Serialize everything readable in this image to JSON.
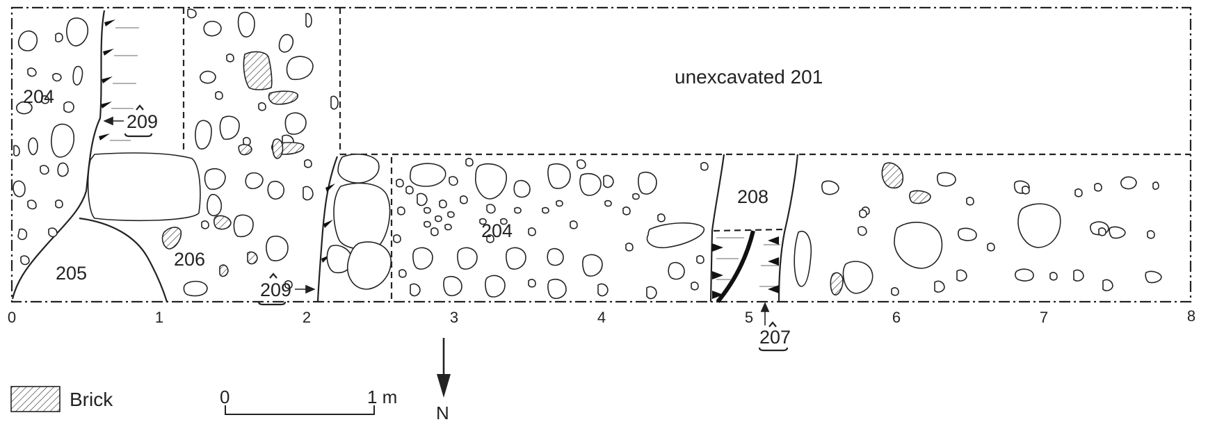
{
  "labels": {
    "unexcavated": "unexcavated 201",
    "context_204_a": "204",
    "context_204_b": "204",
    "context_205": "205",
    "context_206": "206",
    "context_208": "208",
    "cut_209_a": "209",
    "cut_209_b": "209",
    "cut_207": "207"
  },
  "scale_axis": {
    "ticks": [
      "0",
      "1",
      "2",
      "3",
      "4",
      "5",
      "6",
      "7",
      "8"
    ]
  },
  "legend": {
    "brick_label": "Brick"
  },
  "scale_bar": {
    "start": "0",
    "end": "1 m"
  },
  "north_arrow": {
    "label": "N"
  },
  "colors": {
    "ink": "#222222",
    "background": "#ffffff"
  }
}
